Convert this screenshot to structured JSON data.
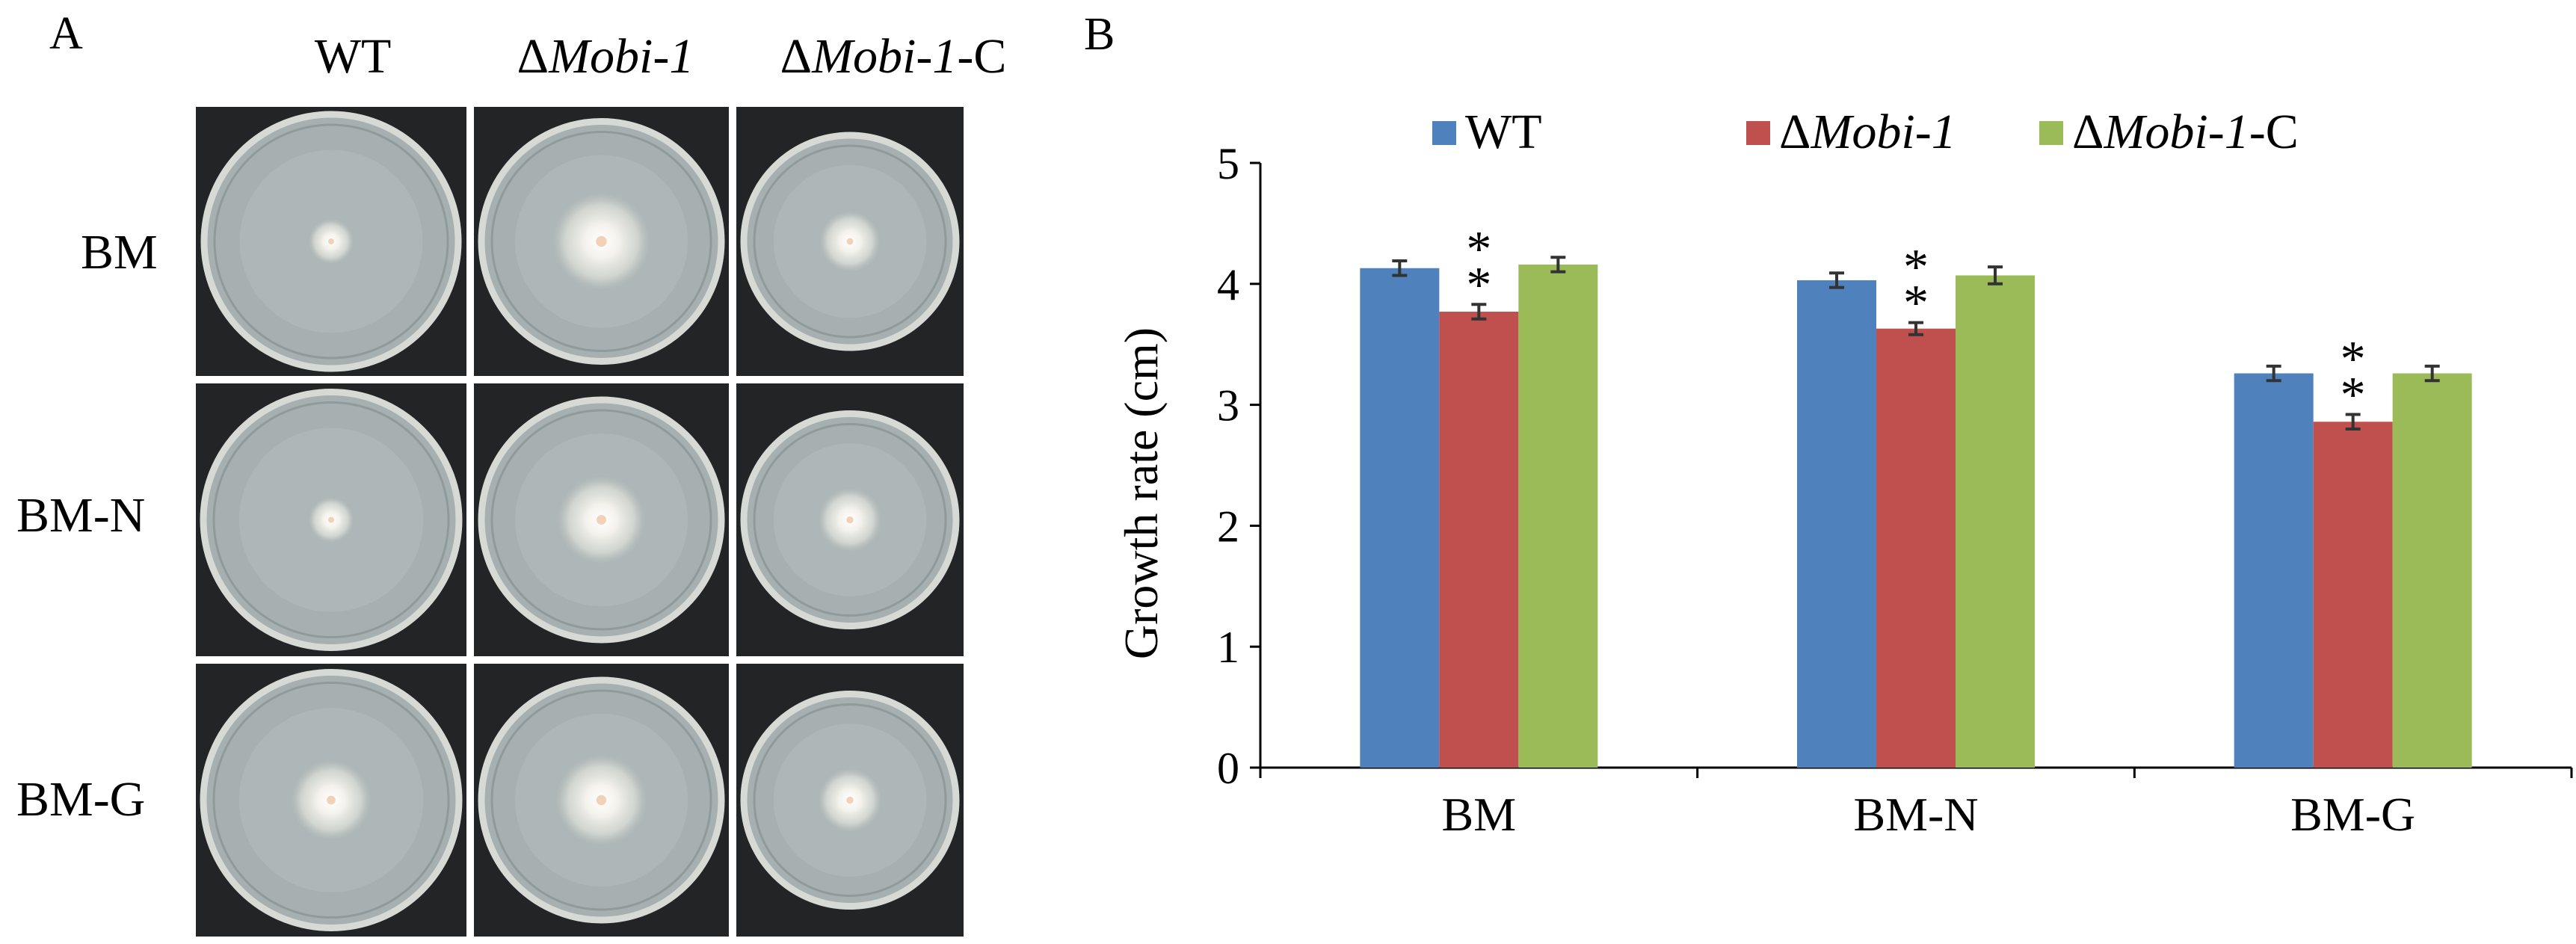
{
  "panel_a": {
    "letter": "A",
    "columns": [
      {
        "prefix": "",
        "italic": "",
        "suffix": "WT"
      },
      {
        "prefix": "Δ",
        "italic": "Mobi-1",
        "suffix": ""
      },
      {
        "prefix": "Δ",
        "italic": "Mobi-1",
        "suffix": "-C"
      }
    ],
    "rows": [
      "BM",
      "BM-N",
      "BM-G"
    ],
    "colony_sizes": [
      [
        0.13,
        0.3,
        0.21
      ],
      [
        0.13,
        0.27,
        0.22
      ],
      [
        0.23,
        0.28,
        0.22
      ]
    ]
  },
  "panel_b": {
    "letter": "B"
  },
  "chart_data": {
    "type": "bar",
    "title": "",
    "xlabel": "",
    "ylabel": "Growth rate (cm)",
    "ylim": [
      0,
      5
    ],
    "yticks": [
      "0",
      "1",
      "2",
      "3",
      "4",
      "5"
    ],
    "categories": [
      "BM",
      "BM-N",
      "BM-G"
    ],
    "series": [
      {
        "prefix": "",
        "italic": "",
        "suffix": "WT",
        "color": "#4F81BD",
        "values": [
          4.13,
          4.03,
          3.26
        ],
        "errors": [
          0.06,
          0.06,
          0.06
        ]
      },
      {
        "prefix": "Δ",
        "italic": "Mobi-1",
        "suffix": "",
        "color": "#C0504D",
        "values": [
          3.77,
          3.63,
          2.86
        ],
        "errors": [
          0.06,
          0.05,
          0.06
        ]
      },
      {
        "prefix": "Δ",
        "italic": "Mobi-1",
        "suffix": "-C",
        "color": "#9BBB59",
        "values": [
          4.16,
          4.07,
          3.26
        ],
        "errors": [
          0.06,
          0.07,
          0.06
        ]
      }
    ],
    "significance": [
      {
        "category": 0,
        "series": 1,
        "marks": [
          "*",
          "*"
        ]
      },
      {
        "category": 1,
        "series": 1,
        "marks": [
          "*",
          "*"
        ]
      },
      {
        "category": 2,
        "series": 1,
        "marks": [
          "*",
          "*"
        ]
      }
    ],
    "legend_position": "top",
    "grid": false
  }
}
